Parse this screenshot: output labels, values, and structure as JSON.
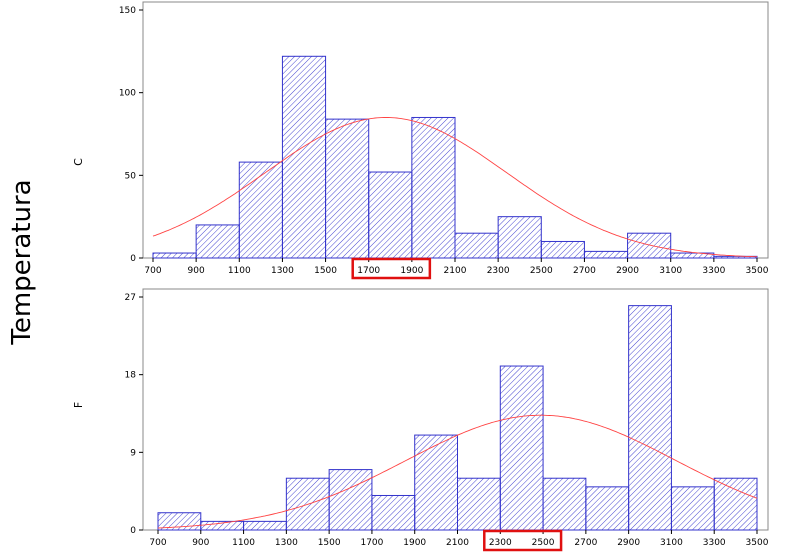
{
  "y_label": "Temperatura",
  "chart_data": [
    {
      "type": "bar",
      "panel_label": "C",
      "x_ticks": [
        700,
        900,
        1100,
        1300,
        1500,
        1700,
        1900,
        2100,
        2300,
        2500,
        2700,
        2900,
        3100,
        3300,
        3500
      ],
      "y_ticks": [
        0,
        50,
        100,
        150
      ],
      "xlim": [
        700,
        3500
      ],
      "ylim": [
        0,
        150
      ],
      "bin_width": 200,
      "bins": [
        {
          "start": 700,
          "count": 3
        },
        {
          "start": 900,
          "count": 20
        },
        {
          "start": 1100,
          "count": 58
        },
        {
          "start": 1300,
          "count": 122
        },
        {
          "start": 1500,
          "count": 84
        },
        {
          "start": 1700,
          "count": 52
        },
        {
          "start": 1900,
          "count": 85
        },
        {
          "start": 2100,
          "count": 15
        },
        {
          "start": 2300,
          "count": 25
        },
        {
          "start": 2500,
          "count": 10
        },
        {
          "start": 2700,
          "count": 4
        },
        {
          "start": 2900,
          "count": 15
        },
        {
          "start": 3100,
          "count": 3
        },
        {
          "start": 3300,
          "count": 1
        }
      ],
      "normal_curve": {
        "mean": 1780,
        "sd": 560,
        "peak": 85
      },
      "highlight": {
        "from": 1700,
        "to": 1900,
        "color": "#e01010"
      },
      "bar_color": "#3333cc",
      "curve_color": "#ff4444"
    },
    {
      "type": "bar",
      "panel_label": "F",
      "x_ticks": [
        700,
        900,
        1100,
        1300,
        1500,
        1700,
        1900,
        2100,
        2300,
        2500,
        2700,
        2900,
        3100,
        3300,
        3500
      ],
      "y_ticks": [
        0,
        9,
        18,
        27
      ],
      "xlim": [
        700,
        3500
      ],
      "ylim": [
        0,
        27
      ],
      "bin_width": 200,
      "bins": [
        {
          "start": 700,
          "count": 2
        },
        {
          "start": 900,
          "count": 1
        },
        {
          "start": 1100,
          "count": 1
        },
        {
          "start": 1300,
          "count": 6
        },
        {
          "start": 1500,
          "count": 7
        },
        {
          "start": 1700,
          "count": 4
        },
        {
          "start": 1900,
          "count": 11
        },
        {
          "start": 2100,
          "count": 6
        },
        {
          "start": 2300,
          "count": 19
        },
        {
          "start": 2500,
          "count": 6
        },
        {
          "start": 2700,
          "count": 5
        },
        {
          "start": 2900,
          "count": 26
        },
        {
          "start": 3100,
          "count": 5
        },
        {
          "start": 3300,
          "count": 6
        }
      ],
      "normal_curve": {
        "mean": 2490,
        "sd": 630,
        "peak": 13.3
      },
      "highlight": {
        "from": 2300,
        "to": 2500,
        "color": "#e01010"
      },
      "bar_color": "#3333cc",
      "curve_color": "#ff4444"
    }
  ]
}
